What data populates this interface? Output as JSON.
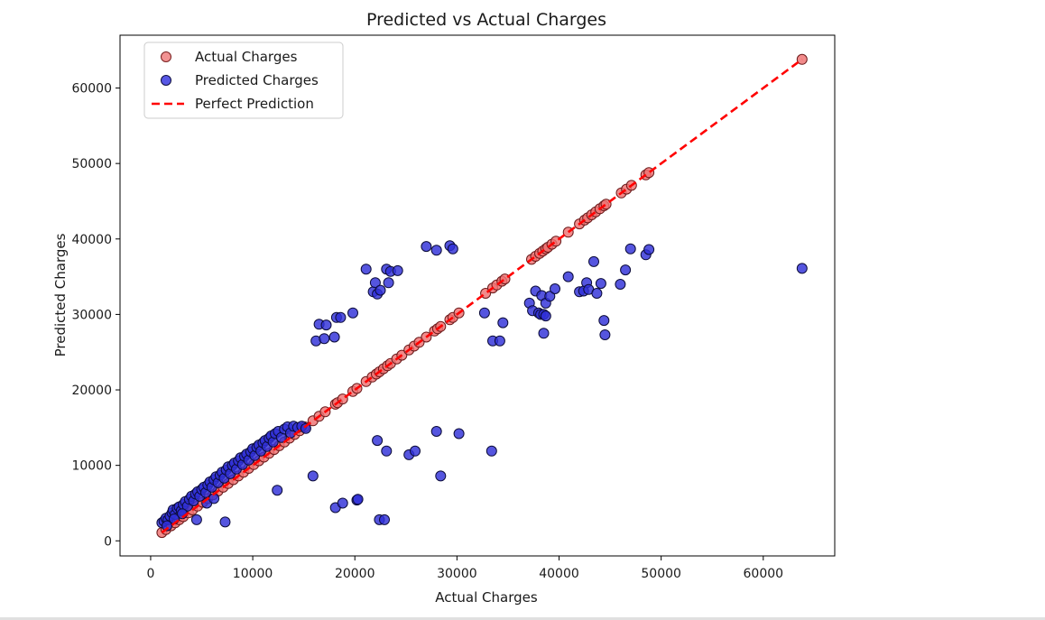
{
  "chart_data": {
    "type": "scatter",
    "title": "Predicted vs Actual Charges",
    "xlabel": "Actual Charges",
    "ylabel": "Predicted Charges",
    "xlim": [
      -3000,
      67000
    ],
    "ylim": [
      -2000,
      67000
    ],
    "xticks": [
      0,
      10000,
      20000,
      30000,
      40000,
      50000,
      60000
    ],
    "yticks": [
      0,
      10000,
      20000,
      30000,
      40000,
      50000,
      60000
    ],
    "tick_labels_x": [
      "0",
      "10000",
      "20000",
      "30000",
      "40000",
      "50000",
      "60000"
    ],
    "tick_labels_y": [
      "0",
      "10000",
      "20000",
      "30000",
      "40000",
      "50000",
      "60000"
    ],
    "grid": false,
    "legend_position": "top-left",
    "legend": [
      {
        "label": "Actual Charges",
        "marker": "circle",
        "color": "#f08080"
      },
      {
        "label": "Predicted Charges",
        "marker": "circle",
        "color": "#3a3ae0"
      },
      {
        "label": "Perfect Prediction",
        "marker": "dashed-line",
        "color": "#ff0000"
      }
    ],
    "series": [
      {
        "name": "Actual Charges",
        "color": "#e87070",
        "points": [
          [
            1100,
            1100
          ],
          [
            1500,
            1500
          ],
          [
            2000,
            2000
          ],
          [
            2400,
            2400
          ],
          [
            2800,
            2800
          ],
          [
            3200,
            3200
          ],
          [
            3700,
            3700
          ],
          [
            4100,
            4100
          ],
          [
            4600,
            4600
          ],
          [
            5100,
            5100
          ],
          [
            5600,
            5600
          ],
          [
            6100,
            6100
          ],
          [
            6600,
            6600
          ],
          [
            7100,
            7100
          ],
          [
            7600,
            7600
          ],
          [
            8100,
            8100
          ],
          [
            8600,
            8600
          ],
          [
            9100,
            9100
          ],
          [
            9600,
            9600
          ],
          [
            10100,
            10100
          ],
          [
            10600,
            10600
          ],
          [
            11100,
            11100
          ],
          [
            11600,
            11600
          ],
          [
            12100,
            12100
          ],
          [
            12600,
            12600
          ],
          [
            13100,
            13100
          ],
          [
            13600,
            13600
          ],
          [
            14100,
            14100
          ],
          [
            14600,
            14600
          ],
          [
            15100,
            15100
          ],
          [
            15900,
            15900
          ],
          [
            16500,
            16500
          ],
          [
            17100,
            17100
          ],
          [
            18100,
            18100
          ],
          [
            18300,
            18300
          ],
          [
            18800,
            18800
          ],
          [
            19800,
            19800
          ],
          [
            20200,
            20200
          ],
          [
            21100,
            21100
          ],
          [
            21700,
            21700
          ],
          [
            22100,
            22100
          ],
          [
            22400,
            22400
          ],
          [
            22800,
            22800
          ],
          [
            23200,
            23200
          ],
          [
            23500,
            23500
          ],
          [
            24100,
            24100
          ],
          [
            24600,
            24600
          ],
          [
            25300,
            25300
          ],
          [
            25800,
            25800
          ],
          [
            26300,
            26300
          ],
          [
            27000,
            27000
          ],
          [
            27800,
            27800
          ],
          [
            28100,
            28100
          ],
          [
            28400,
            28400
          ],
          [
            29300,
            29300
          ],
          [
            29600,
            29600
          ],
          [
            30200,
            30200
          ],
          [
            32800,
            32800
          ],
          [
            33500,
            33500
          ],
          [
            33900,
            33900
          ],
          [
            34400,
            34400
          ],
          [
            34700,
            34700
          ],
          [
            37300,
            37300
          ],
          [
            37700,
            37700
          ],
          [
            38100,
            38100
          ],
          [
            38400,
            38400
          ],
          [
            38700,
            38700
          ],
          [
            38900,
            38900
          ],
          [
            39300,
            39300
          ],
          [
            39700,
            39700
          ],
          [
            40900,
            40900
          ],
          [
            42000,
            42000
          ],
          [
            42500,
            42500
          ],
          [
            42800,
            42800
          ],
          [
            43200,
            43200
          ],
          [
            43600,
            43600
          ],
          [
            44000,
            44000
          ],
          [
            44400,
            44400
          ],
          [
            44600,
            44600
          ],
          [
            46100,
            46100
          ],
          [
            46600,
            46600
          ],
          [
            47100,
            47100
          ],
          [
            48500,
            48500
          ],
          [
            48800,
            48800
          ],
          [
            63800,
            63800
          ]
        ]
      },
      {
        "name": "Predicted Charges",
        "color": "#2f2fd8",
        "points": [
          [
            1100,
            2400
          ],
          [
            1300,
            2600
          ],
          [
            1500,
            3000
          ],
          [
            1700,
            2800
          ],
          [
            1900,
            3300
          ],
          [
            2100,
            3700
          ],
          [
            2200,
            4100
          ],
          [
            2400,
            3500
          ],
          [
            2600,
            4300
          ],
          [
            2800,
            4500
          ],
          [
            3000,
            4000
          ],
          [
            3200,
            4800
          ],
          [
            3400,
            5200
          ],
          [
            3600,
            4600
          ],
          [
            3800,
            5500
          ],
          [
            4000,
            5900
          ],
          [
            4200,
            5300
          ],
          [
            4400,
            6200
          ],
          [
            4600,
            6500
          ],
          [
            4800,
            5900
          ],
          [
            5000,
            6800
          ],
          [
            5200,
            7100
          ],
          [
            5400,
            6400
          ],
          [
            5600,
            7400
          ],
          [
            5800,
            7800
          ],
          [
            6000,
            7100
          ],
          [
            6200,
            8100
          ],
          [
            6400,
            8500
          ],
          [
            6600,
            7700
          ],
          [
            6800,
            8700
          ],
          [
            7000,
            9100
          ],
          [
            7200,
            8300
          ],
          [
            7400,
            9400
          ],
          [
            7600,
            9800
          ],
          [
            7800,
            8900
          ],
          [
            8000,
            10000
          ],
          [
            8200,
            10300
          ],
          [
            8400,
            9500
          ],
          [
            8600,
            10600
          ],
          [
            8800,
            11000
          ],
          [
            9000,
            10100
          ],
          [
            9200,
            11200
          ],
          [
            9400,
            11500
          ],
          [
            9600,
            10700
          ],
          [
            9800,
            11800
          ],
          [
            10000,
            12200
          ],
          [
            10200,
            11300
          ],
          [
            10400,
            12400
          ],
          [
            10600,
            12700
          ],
          [
            10800,
            11900
          ],
          [
            11000,
            13000
          ],
          [
            11200,
            13300
          ],
          [
            11400,
            12500
          ],
          [
            11600,
            13600
          ],
          [
            11800,
            13900
          ],
          [
            12000,
            13100
          ],
          [
            12200,
            14200
          ],
          [
            12500,
            14500
          ],
          [
            12800,
            13700
          ],
          [
            13100,
            14800
          ],
          [
            13400,
            15100
          ],
          [
            13700,
            14300
          ],
          [
            14000,
            15200
          ],
          [
            14400,
            15000
          ],
          [
            14800,
            15200
          ],
          [
            15200,
            14900
          ],
          [
            1600,
            2000
          ],
          [
            2300,
            2900
          ],
          [
            3100,
            3600
          ],
          [
            4500,
            2800
          ],
          [
            5500,
            5000
          ],
          [
            6200,
            5600
          ],
          [
            7300,
            2500
          ],
          [
            12400,
            6700
          ],
          [
            15900,
            8600
          ],
          [
            18100,
            4400
          ],
          [
            18800,
            5000
          ],
          [
            20200,
            5400
          ],
          [
            20300,
            5500
          ],
          [
            22200,
            13300
          ],
          [
            22400,
            2800
          ],
          [
            22900,
            2800
          ],
          [
            23100,
            11900
          ],
          [
            25300,
            11400
          ],
          [
            25900,
            11900
          ],
          [
            28000,
            14500
          ],
          [
            28400,
            8600
          ],
          [
            30200,
            14200
          ],
          [
            33400,
            11900
          ],
          [
            16200,
            26500
          ],
          [
            16500,
            28700
          ],
          [
            17000,
            26800
          ],
          [
            17200,
            28600
          ],
          [
            18000,
            27000
          ],
          [
            18200,
            29600
          ],
          [
            18600,
            29600
          ],
          [
            19800,
            30200
          ],
          [
            21100,
            36000
          ],
          [
            21800,
            33000
          ],
          [
            22000,
            34200
          ],
          [
            22200,
            32700
          ],
          [
            22500,
            33200
          ],
          [
            23100,
            36000
          ],
          [
            23300,
            34200
          ],
          [
            23500,
            35700
          ],
          [
            24200,
            35800
          ],
          [
            27000,
            39000
          ],
          [
            28000,
            38500
          ],
          [
            29300,
            39100
          ],
          [
            29600,
            38700
          ],
          [
            32700,
            30200
          ],
          [
            33500,
            26500
          ],
          [
            34200,
            26500
          ],
          [
            34500,
            28900
          ],
          [
            37100,
            31500
          ],
          [
            37400,
            30500
          ],
          [
            37700,
            33100
          ],
          [
            38000,
            30200
          ],
          [
            38200,
            30000
          ],
          [
            38300,
            32500
          ],
          [
            38500,
            30000
          ],
          [
            38500,
            27500
          ],
          [
            38700,
            31500
          ],
          [
            38700,
            29800
          ],
          [
            39100,
            32400
          ],
          [
            39600,
            33400
          ],
          [
            40900,
            35000
          ],
          [
            42000,
            33000
          ],
          [
            42400,
            33100
          ],
          [
            42700,
            34200
          ],
          [
            42900,
            33300
          ],
          [
            43400,
            37000
          ],
          [
            43700,
            32800
          ],
          [
            44100,
            34100
          ],
          [
            44400,
            29200
          ],
          [
            44500,
            27300
          ],
          [
            46000,
            34000
          ],
          [
            46500,
            35900
          ],
          [
            47000,
            38700
          ],
          [
            48500,
            37900
          ],
          [
            48800,
            38600
          ],
          [
            63800,
            36100
          ]
        ]
      }
    ],
    "reference_line": {
      "name": "Perfect Prediction",
      "from": [
        1100,
        1100
      ],
      "to": [
        63800,
        63800
      ],
      "style": "dashed",
      "color": "#ff0000"
    }
  }
}
